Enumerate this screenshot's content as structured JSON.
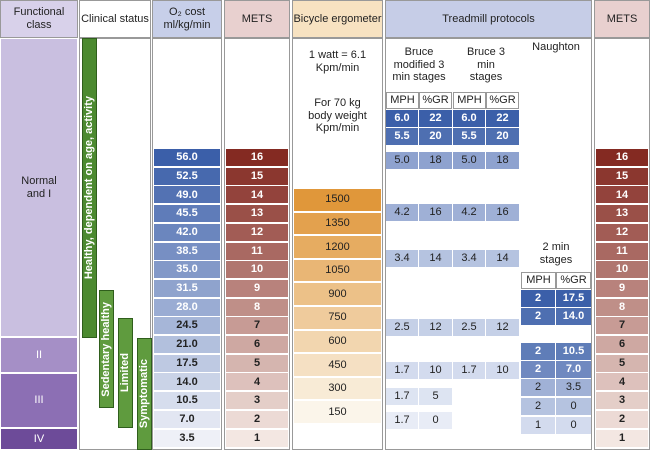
{
  "header": {
    "functional_class": "Functional class",
    "clinical_status": "Clinical status",
    "o2_cost": "O₂ cost ml/kg/min",
    "mets": "METS",
    "bicycle": "Bicycle ergometer",
    "treadmill": "Treadmill protocols"
  },
  "functional_classes": [
    "Normal and I",
    "II",
    "III",
    "IV"
  ],
  "clinical_status": [
    "Healthy, dependent on age, activity",
    "Sedentary healthy",
    "Limited",
    "Symptomatic"
  ],
  "o2_cost": [
    "56.0",
    "52.5",
    "49.0",
    "45.5",
    "42.0",
    "38.5",
    "35.0",
    "31.5",
    "28.0",
    "24.5",
    "21.0",
    "17.5",
    "14.0",
    "10.5",
    "7.0",
    "3.5"
  ],
  "mets": [
    16,
    15,
    14,
    13,
    12,
    11,
    10,
    9,
    8,
    7,
    6,
    5,
    4,
    3,
    2,
    1
  ],
  "bicycle": {
    "note_watt": "1 watt = 6.1 Kpm/min",
    "note_weight": "For 70 kg body weight Kpm/min",
    "values": [
      1500,
      1350,
      1200,
      1050,
      900,
      750,
      600,
      450,
      300,
      150
    ]
  },
  "treadmill": {
    "mph": "MPH",
    "grade": "%GR",
    "bruce_modified": {
      "name": "Bruce modified 3 min stages",
      "rows": [
        [
          "6.0",
          "22"
        ],
        [
          "5.5",
          "20"
        ],
        [
          "5.0",
          "18"
        ],
        [
          "4.2",
          "16"
        ],
        [
          "3.4",
          "14"
        ],
        [
          "2.5",
          "12"
        ],
        [
          "1.7",
          "10"
        ],
        [
          "1.7",
          "5"
        ],
        [
          "1.7",
          "0"
        ]
      ]
    },
    "bruce": {
      "name": "Bruce 3 min stages",
      "rows": [
        [
          "6.0",
          "22"
        ],
        [
          "5.5",
          "20"
        ],
        [
          "5.0",
          "18"
        ],
        [
          "4.2",
          "16"
        ],
        [
          "3.4",
          "14"
        ],
        [
          "2.5",
          "12"
        ],
        [
          "1.7",
          "10"
        ]
      ]
    },
    "naughton": {
      "name": "Naughton",
      "stage_note": "2 min stages",
      "rows": [
        [
          "2",
          "17.5"
        ],
        [
          "2",
          "14.0"
        ],
        [
          "2",
          "10.5"
        ],
        [
          "2",
          "7.0"
        ],
        [
          "2",
          "3.5"
        ],
        [
          "2",
          "0"
        ],
        [
          "1",
          "0"
        ]
      ]
    }
  }
}
